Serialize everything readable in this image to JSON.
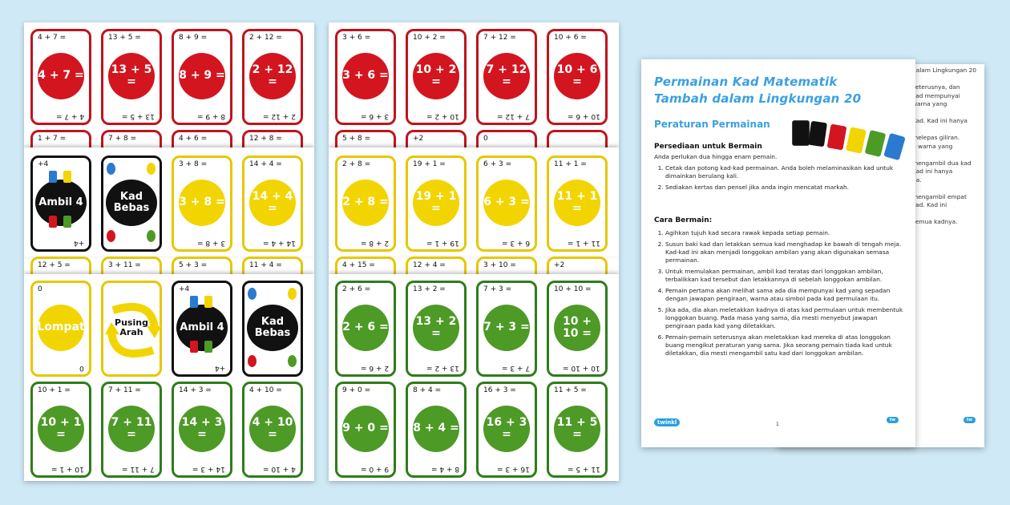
{
  "sheet1": {
    "red_cards": [
      {
        "top": "4 + 7 =",
        "mid": "4 + 7 =",
        "bot": "4 + 7 ="
      },
      {
        "top": "13 + 5 =",
        "mid": "13 + 5 =",
        "bot": "13 + 5 ="
      },
      {
        "top": "8 + 9 =",
        "mid": "8 + 9 =",
        "bot": "8 + 9 ="
      },
      {
        "top": "2 + 12 =",
        "mid": "2 + 12 =",
        "bot": "2 + 12 ="
      }
    ],
    "red_row2_tops": [
      "1 + 7 =",
      "7 + 8 =",
      "4 + 6 =",
      "12 + 8 ="
    ],
    "yellow_cards": [
      {
        "top": "+4",
        "mid": "Ambil 4",
        "bot": "+4",
        "type": "black-draw"
      },
      {
        "top": "",
        "mid": "Kad Bebas",
        "bot": "",
        "type": "black-wild"
      },
      {
        "top": "3 + 8 =",
        "mid": "3 + 8 =",
        "bot": "3 + 8 ="
      },
      {
        "top": "14 + 4 =",
        "mid": "14 + 4 =",
        "bot": "14 + 4 ="
      }
    ],
    "yellow_row2_tops": [
      "12 + 5 =",
      "3 + 11 =",
      "5 + 3 =",
      "11 + 4 ="
    ],
    "green_special": [
      {
        "top": "0",
        "mid": "Lompat",
        "bot": "0",
        "type": "yellow-skip"
      },
      {
        "top": "",
        "mid": "Pusing Arah",
        "bot": "",
        "type": "reverse"
      },
      {
        "top": "+4",
        "mid": "Ambil 4",
        "bot": "+4",
        "type": "black-draw"
      },
      {
        "top": "",
        "mid": "Kad Bebas",
        "bot": "",
        "type": "black-wild"
      }
    ],
    "green_cards": [
      {
        "top": "10 + 1 =",
        "mid": "10 + 1 =",
        "bot": "10 + 1 ="
      },
      {
        "top": "7 + 11 =",
        "mid": "7 + 11 =",
        "bot": "7 + 11 ="
      },
      {
        "top": "14 + 3 =",
        "mid": "14 + 3 =",
        "bot": "14 + 3 ="
      },
      {
        "top": "4 + 10 =",
        "mid": "4 + 10 =",
        "bot": "4 + 10 ="
      }
    ]
  },
  "sheet2": {
    "red_cards": [
      {
        "top": "3 + 6 =",
        "mid": "3 + 6 =",
        "bot": "3 + 6 ="
      },
      {
        "top": "10 + 2 =",
        "mid": "10 + 2 =",
        "bot": "10 + 2 ="
      },
      {
        "top": "7 + 12 =",
        "mid": "7 + 12 =",
        "bot": "7 + 12 ="
      },
      {
        "top": "10 + 6 =",
        "mid": "10 + 6 =",
        "bot": "10 + 6 ="
      }
    ],
    "red_row2_tops": [
      "5 + 8 =",
      "+2",
      "0",
      ""
    ],
    "yellow_cards": [
      {
        "top": "2 + 8 =",
        "mid": "2 + 8 =",
        "bot": "2 + 8 ="
      },
      {
        "top": "19 + 1 =",
        "mid": "19 + 1 =",
        "bot": "19 + 1 ="
      },
      {
        "top": "6 + 3 =",
        "mid": "6 + 3 =",
        "bot": "6 + 3 ="
      },
      {
        "top": "11 + 1 =",
        "mid": "11 + 1 =",
        "bot": "11 + 1 ="
      }
    ],
    "yellow_row2_tops": [
      "4 + 15 =",
      "12 + 4 =",
      "3 + 10 =",
      "+2"
    ],
    "green_top": [
      {
        "top": "2 + 6 =",
        "mid": "2 + 6 =",
        "bot": "2 + 6 ="
      },
      {
        "top": "13 + 2 =",
        "mid": "13 + 2 =",
        "bot": "13 + 2 ="
      },
      {
        "top": "7 + 3 =",
        "mid": "7 + 3 =",
        "bot": "7 + 3 ="
      },
      {
        "top": "10 + 10 =",
        "mid": "10 + 10 =",
        "bot": "10 + 10 ="
      }
    ],
    "green_cards": [
      {
        "top": "9 + 0 =",
        "mid": "9 + 0 =",
        "bot": "9 + 0 ="
      },
      {
        "top": "8 + 4 =",
        "mid": "8 + 4 =",
        "bot": "8 + 4 ="
      },
      {
        "top": "16 + 3 =",
        "mid": "16 + 3 =",
        "bot": "16 + 3 ="
      },
      {
        "top": "11 + 5 =",
        "mid": "11 + 5 =",
        "bot": "11 + 5 ="
      }
    ]
  },
  "document": {
    "title_line1": "Permainan Kad Matematik",
    "title_line2": "Tambah dalam Lingkungan 20",
    "subtitle": "Peraturan Permainan",
    "section1_heading": "Persediaan untuk Bermain",
    "section1_intro": "Anda perlukan dua hingga enam pemain.",
    "section1_items": [
      "Cetak dan potong kad-kad permainan. Anda boleh melaminasikan kad untuk dimainkan berulang kali.",
      "Sediakan kertas dan pensel jika anda ingin mencatat markah."
    ],
    "section2_heading": "Cara Bermain:",
    "section2_items": [
      "Agihkan tujuh kad secara rawak kepada setiap pemain.",
      "Susun baki kad dan letakkan semua kad menghadap ke bawah di tengah meja. Kad-kad ini akan menjadi longgokan ambilan yang akan digunakan semasa permainan.",
      "Untuk memulakan permainan, ambil kad teratas dari longgokan ambilan, terbalikkan kad tersebut dan letakkannya di sebelah longgokan ambilan.",
      "Pemain pertama akan melihat sama ada dia mempunyai kad yang sepadan dengan jawapan pengiraan, warna atau simbol pada kad permulaan itu.",
      "Jika ada, dia akan meletakkan kadnya di atas kad permulaan untuk membentuk longgokan buang. Pada masa yang sama, dia mesti menyebut jawapan pengiraan pada kad yang diletakkan.",
      "Pemain-pemain seterusnya akan meletakkan kad mereka di atas longgokan buang mengikut peraturan yang sama. Jika seorang pemain tiada kad untuk diletakkan, dia mesti mengambil satu kad dari longgokan ambilan."
    ],
    "page_number": "1",
    "logo_text": "twinkl"
  },
  "back_page": {
    "header": "dalam Lingkungan 20",
    "lines": [
      "seterusnya, dan",
      "kad mempunyai",
      "warna yang",
      "",
      "Kad. Kad ini hanya",
      "",
      "melepas giliran.",
      "n warna yang",
      "",
      "mengambil dua kad",
      "Kad ini hanya",
      "da.",
      "",
      "mengambil empat",
      "kad. Kad ini",
      "",
      "semua kadnya."
    ]
  },
  "colors": {
    "red": "#d3151f",
    "yellow": "#f2d500",
    "green": "#4d9a26",
    "blue_title": "#3aa0e0",
    "background": "#cfe9f6"
  }
}
